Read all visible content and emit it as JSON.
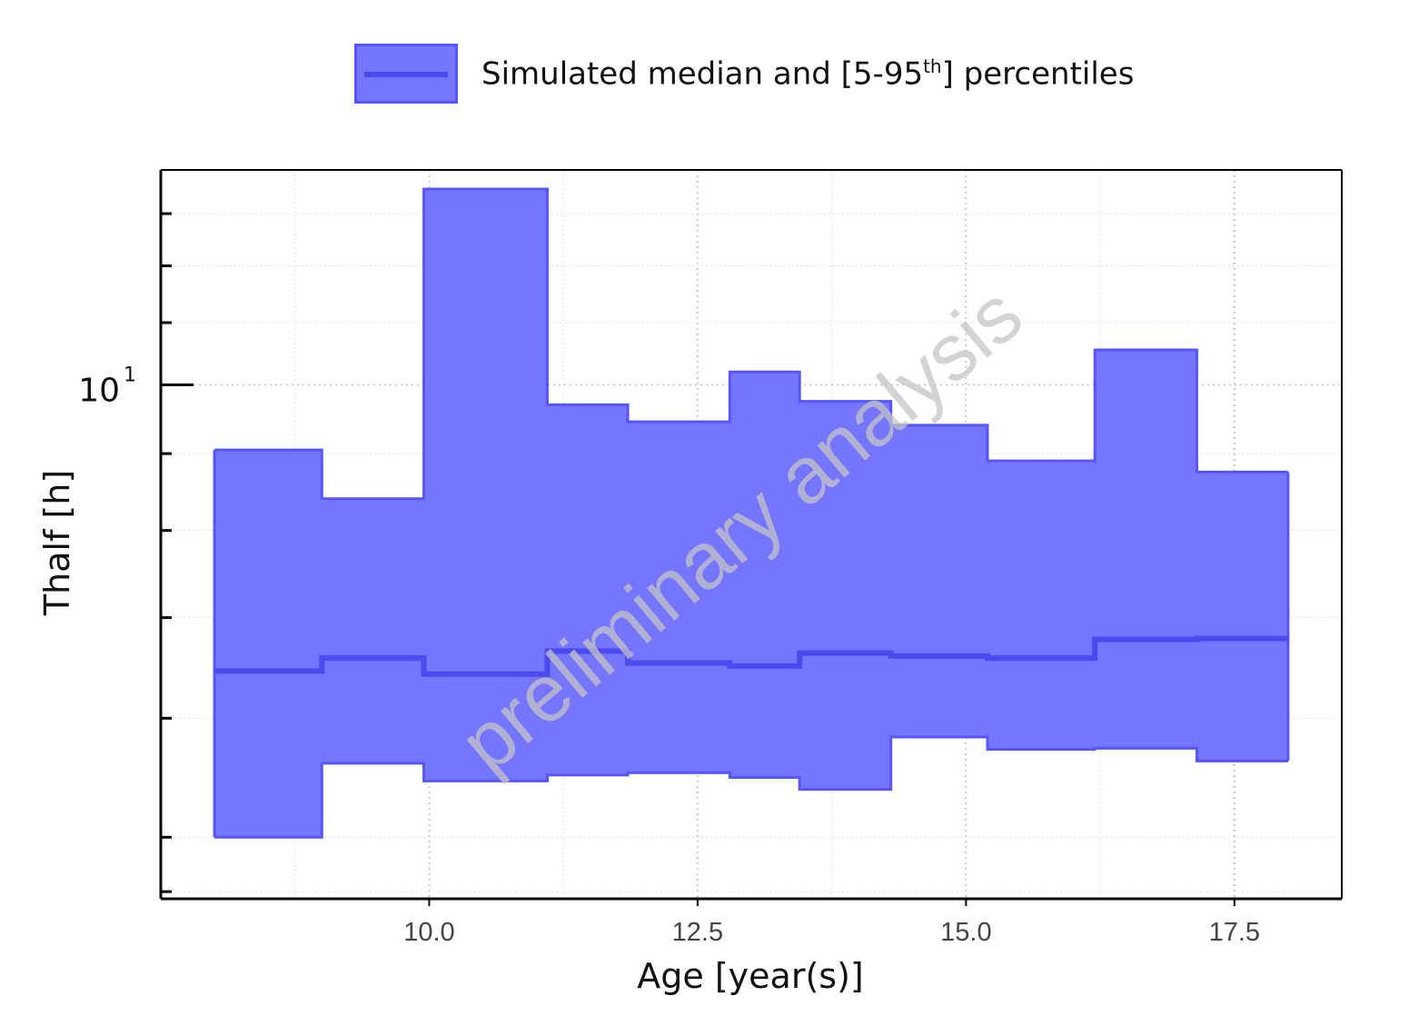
{
  "legend": {
    "label_main": "Simulated median and [5-95",
    "label_sup": "th",
    "label_end": "] percentiles"
  },
  "watermark": "preliminary analysis",
  "colors": {
    "fill": "#7575ff",
    "edge": "#5656ff",
    "median": "#4a4af0",
    "grid": "#c8c8c8",
    "axis": "#000000",
    "watermark": "#c4c4c4"
  },
  "chart_data": {
    "type": "area",
    "xlabel": "Age [year(s)]",
    "ylabel": "Thalf [h]",
    "xlim": [
      7.5,
      18.5
    ],
    "ylim": [
      4.55,
      13.9
    ],
    "yscale": "log",
    "x_ticks": [
      10.0,
      12.5,
      15.0,
      17.5
    ],
    "x_tick_labels": [
      "10.0",
      "12.5",
      "15.0",
      "17.5"
    ],
    "y_major_ticks": [
      10
    ],
    "y_major_tick_labels": [
      "10",
      "1"
    ],
    "y_minor_ticks": [
      4.6,
      5,
      6,
      7,
      8,
      9,
      11,
      12,
      13
    ],
    "x_minor_ticks": [
      8.75,
      11.25,
      13.75,
      16.25
    ],
    "grid": true,
    "legend_position": "top-center",
    "bins": [
      {
        "x0": 8.0,
        "x1": 9.0,
        "lower": 5.0,
        "median": 6.45,
        "upper": 9.05
      },
      {
        "x0": 9.0,
        "x1": 9.95,
        "lower": 5.6,
        "median": 6.58,
        "upper": 8.4
      },
      {
        "x0": 9.95,
        "x1": 11.1,
        "lower": 5.45,
        "median": 6.42,
        "upper": 13.5
      },
      {
        "x0": 11.1,
        "x1": 11.85,
        "lower": 5.5,
        "median": 6.65,
        "upper": 9.7
      },
      {
        "x0": 11.85,
        "x1": 12.8,
        "lower": 5.52,
        "median": 6.53,
        "upper": 9.45
      },
      {
        "x0": 12.8,
        "x1": 13.45,
        "lower": 5.48,
        "median": 6.5,
        "upper": 10.2
      },
      {
        "x0": 13.45,
        "x1": 14.3,
        "lower": 5.38,
        "median": 6.63,
        "upper": 9.75
      },
      {
        "x0": 14.3,
        "x1": 15.2,
        "lower": 5.83,
        "median": 6.6,
        "upper": 9.4
      },
      {
        "x0": 15.2,
        "x1": 16.2,
        "lower": 5.72,
        "median": 6.58,
        "upper": 8.9
      },
      {
        "x0": 16.2,
        "x1": 17.15,
        "lower": 5.73,
        "median": 6.77,
        "upper": 10.55
      },
      {
        "x0": 17.15,
        "x1": 18.0,
        "lower": 5.62,
        "median": 6.78,
        "upper": 8.75
      }
    ]
  }
}
